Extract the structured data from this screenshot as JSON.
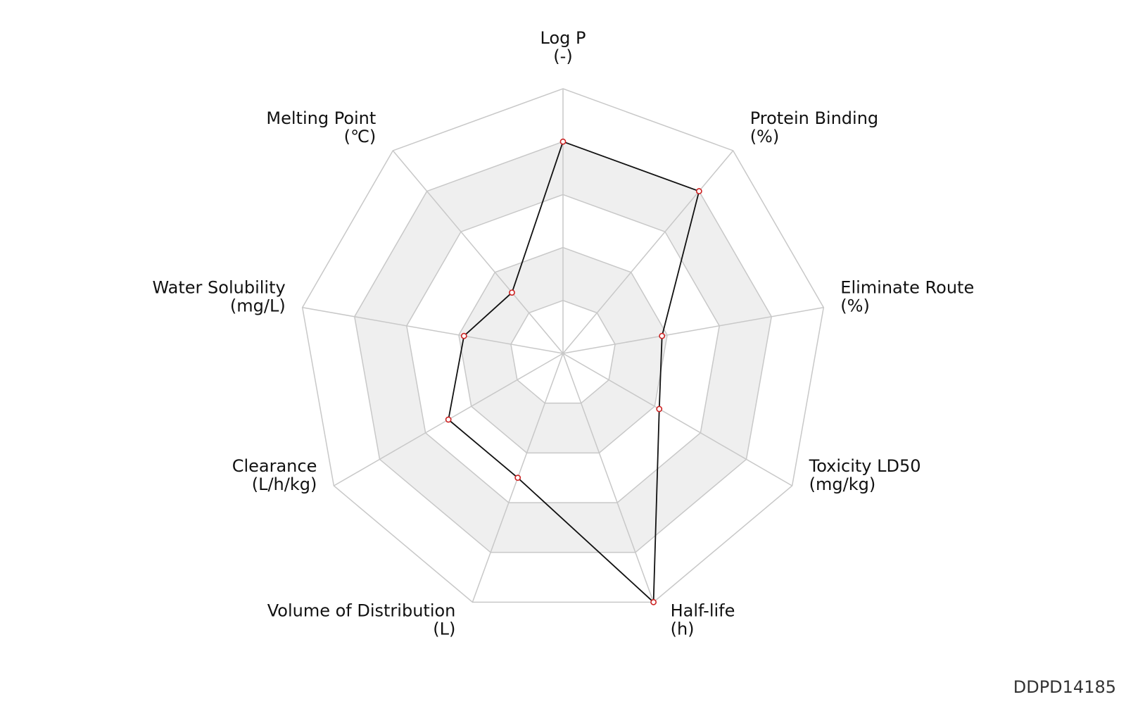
{
  "chart_data": {
    "type": "radar",
    "axes": [
      {
        "name": "Log P",
        "unit": "(-)"
      },
      {
        "name": "Protein Binding",
        "unit": "(%)"
      },
      {
        "name": "Eliminate Route",
        "unit": "(%)"
      },
      {
        "name": "Toxicity LD50",
        "unit": "(mg/kg)"
      },
      {
        "name": "Half-life",
        "unit": "(h)"
      },
      {
        "name": "Volume of Distribution",
        "unit": "(L)"
      },
      {
        "name": "Clearance",
        "unit": "(L/h/kg)"
      },
      {
        "name": "Water Solubility",
        "unit": "(mg/L)"
      },
      {
        "name": "Melting Point",
        "unit": "(℃)"
      }
    ],
    "values": [
      0.8,
      0.8,
      0.38,
      0.42,
      1.0,
      0.5,
      0.5,
      0.38,
      0.3
    ],
    "rings": 5,
    "range": [
      0,
      1
    ],
    "colors": {
      "grid": "#c8c8c8",
      "band_fill": "#efefef",
      "line": "#111111",
      "marker": "#cc2222"
    }
  },
  "footer": {
    "id": "DDPD14185"
  }
}
